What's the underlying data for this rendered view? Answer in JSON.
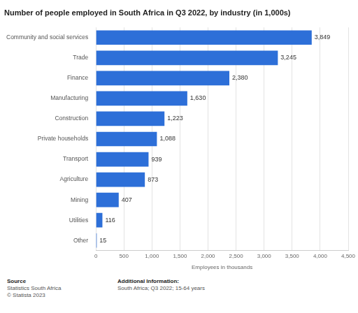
{
  "chart_data": {
    "type": "bar",
    "orientation": "horizontal",
    "title": "Number of people employed in South Africa in Q3 2022, by industry (in 1,000s)",
    "xlabel": "Employees in thousands",
    "categories": [
      "Community and social services",
      "Trade",
      "Finance",
      "Manufacturing",
      "Construction",
      "Private households",
      "Transport",
      "Agriculture",
      "Mining",
      "Utilities",
      "Other"
    ],
    "values": [
      3849,
      3245,
      2380,
      1630,
      1223,
      1088,
      939,
      873,
      407,
      116,
      15
    ],
    "value_labels": [
      "3,849",
      "3,245",
      "2,380",
      "1,630",
      "1,223",
      "1,088",
      "939",
      "873",
      "407",
      "116",
      "15"
    ],
    "data_labels": true,
    "color": "#2d6fd8",
    "xlim": [
      0,
      4500
    ],
    "xticks": [
      0,
      500,
      {
        "value": 1000,
        "label": "1,000"
      },
      {
        "value": 1500,
        "label": "1,500"
      },
      {
        "value": 2000,
        "label": "2,000"
      },
      {
        "value": 2500,
        "label": "2,500"
      },
      {
        "value": 3000,
        "label": "3,000"
      },
      {
        "value": 3500,
        "label": "3,500"
      },
      {
        "value": 4000,
        "label": "4,000"
      },
      {
        "value": 4500,
        "label": "4,500"
      }
    ],
    "grid": true,
    "annotations": [
      [
        "Source",
        "Statistics South Africa",
        "© Statista 2023"
      ],
      [
        "Additional Information:",
        "South Africa; Q3 2022; 15-64 years"
      ]
    ]
  }
}
